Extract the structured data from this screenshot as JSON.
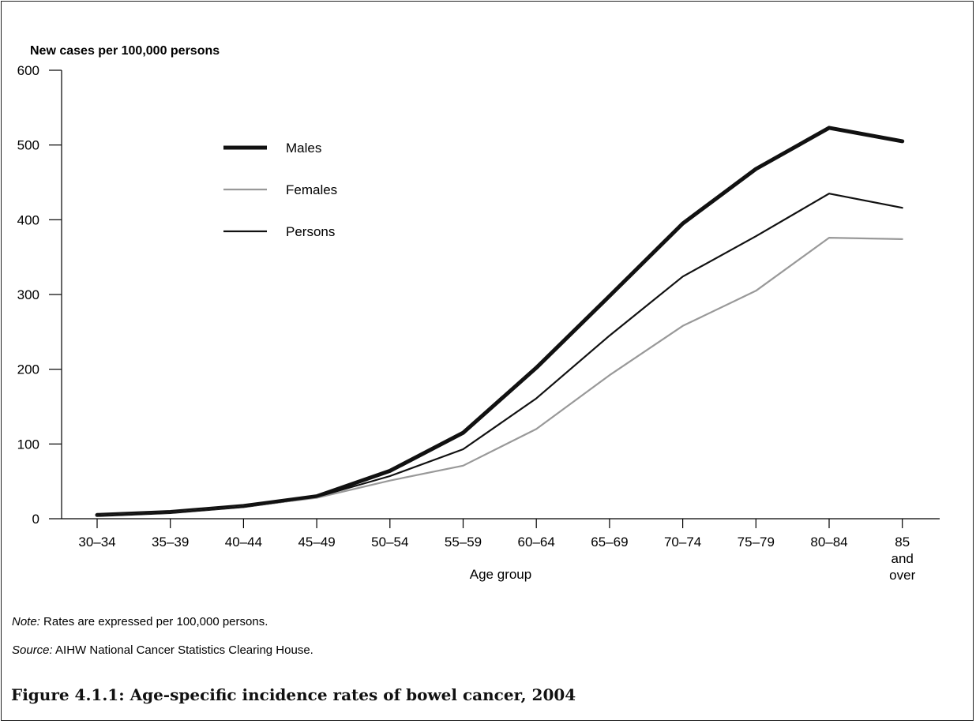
{
  "chart_data": {
    "type": "line",
    "ylabel": "New cases per 100,000 persons",
    "xlabel": "Age group",
    "ylim": [
      0,
      600
    ],
    "yticks": [
      0,
      100,
      200,
      300,
      400,
      500,
      600
    ],
    "categories": [
      "30–34",
      "35–39",
      "40–44",
      "45–49",
      "50–54",
      "55–59",
      "60–64",
      "65–69",
      "70–74",
      "75–79",
      "80–84",
      "85\nand\nover"
    ],
    "series": [
      {
        "name": "Males",
        "color": "#111111",
        "width": 5,
        "values": [
          5,
          9,
          17,
          30,
          64,
          115,
          202,
          298,
          395,
          468,
          523,
          505
        ]
      },
      {
        "name": "Females",
        "color": "#999999",
        "width": 2.2,
        "values": [
          4,
          8,
          16,
          28,
          51,
          71,
          120,
          192,
          258,
          305,
          376,
          374
        ]
      },
      {
        "name": "Persons",
        "color": "#111111",
        "width": 2.2,
        "values": [
          4,
          8,
          16,
          29,
          57,
          93,
          161,
          245,
          324,
          378,
          435,
          416
        ]
      }
    ],
    "legend_position": "upper-left"
  },
  "notes": {
    "note_label": "Note:",
    "note_text": " Rates are expressed per 100,000 persons.",
    "source_label": "Source:",
    "source_text": " AIHW National Cancer Statistics Clearing House."
  },
  "caption": "Figure 4.1.1: Age-specific incidence rates of bowel cancer, 2004"
}
